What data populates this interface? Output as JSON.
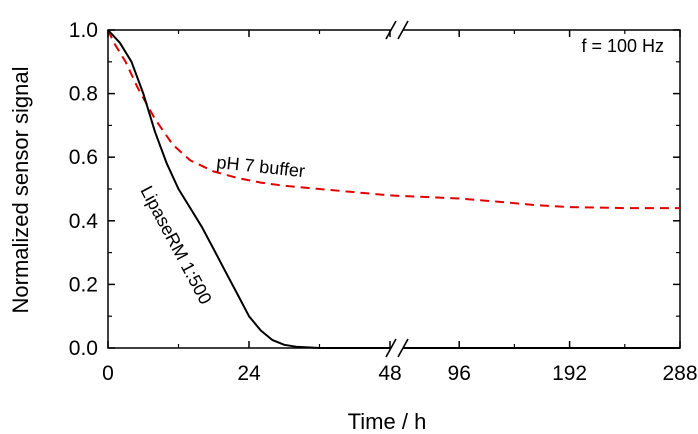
{
  "chart_data": {
    "type": "line",
    "xlabel": "Time / h",
    "ylabel": "Normalized sensor signal",
    "ylim": [
      0,
      1.0
    ],
    "y_ticks": [
      "0.0",
      "0.2",
      "0.4",
      "0.6",
      "0.8",
      "1.0"
    ],
    "x_axis_break": "between 48 and 96",
    "x_segments": [
      {
        "range": [
          0,
          48
        ],
        "ticks": [
          "0",
          "24",
          "48"
        ]
      },
      {
        "range": [
          48,
          288
        ],
        "ticks": [
          "96",
          "192",
          "288"
        ]
      }
    ],
    "annotation": "f = 100 Hz",
    "series": [
      {
        "name": "pH 7 buffer",
        "color": "#e00000",
        "style": "dashed",
        "points": [
          [
            0,
            1.0
          ],
          [
            1,
            0.96
          ],
          [
            3,
            0.9
          ],
          [
            5,
            0.82
          ],
          [
            8,
            0.72
          ],
          [
            11,
            0.64
          ],
          [
            14,
            0.59
          ],
          [
            18,
            0.555
          ],
          [
            22,
            0.535
          ],
          [
            26,
            0.52
          ],
          [
            30,
            0.51
          ],
          [
            36,
            0.5
          ],
          [
            42,
            0.49
          ],
          [
            48,
            0.48
          ],
          [
            96,
            0.47
          ],
          [
            130,
            0.46
          ],
          [
            160,
            0.45
          ],
          [
            192,
            0.443
          ],
          [
            240,
            0.44
          ],
          [
            288,
            0.44
          ]
        ]
      },
      {
        "name": "LipaseRM 1:500",
        "color": "#000000",
        "style": "solid",
        "points": [
          [
            0,
            1.0
          ],
          [
            2,
            0.96
          ],
          [
            4,
            0.9
          ],
          [
            6,
            0.8
          ],
          [
            8,
            0.68
          ],
          [
            10,
            0.58
          ],
          [
            12,
            0.5
          ],
          [
            14,
            0.44
          ],
          [
            16,
            0.38
          ],
          [
            18,
            0.31
          ],
          [
            20,
            0.24
          ],
          [
            22,
            0.17
          ],
          [
            24,
            0.1
          ],
          [
            26,
            0.055
          ],
          [
            28,
            0.025
          ],
          [
            30,
            0.01
          ],
          [
            32,
            0.004
          ],
          [
            36,
            0.0
          ],
          [
            48,
            0.0
          ],
          [
            96,
            0.0
          ],
          [
            192,
            0.0
          ],
          [
            288,
            0.0
          ]
        ]
      }
    ]
  }
}
